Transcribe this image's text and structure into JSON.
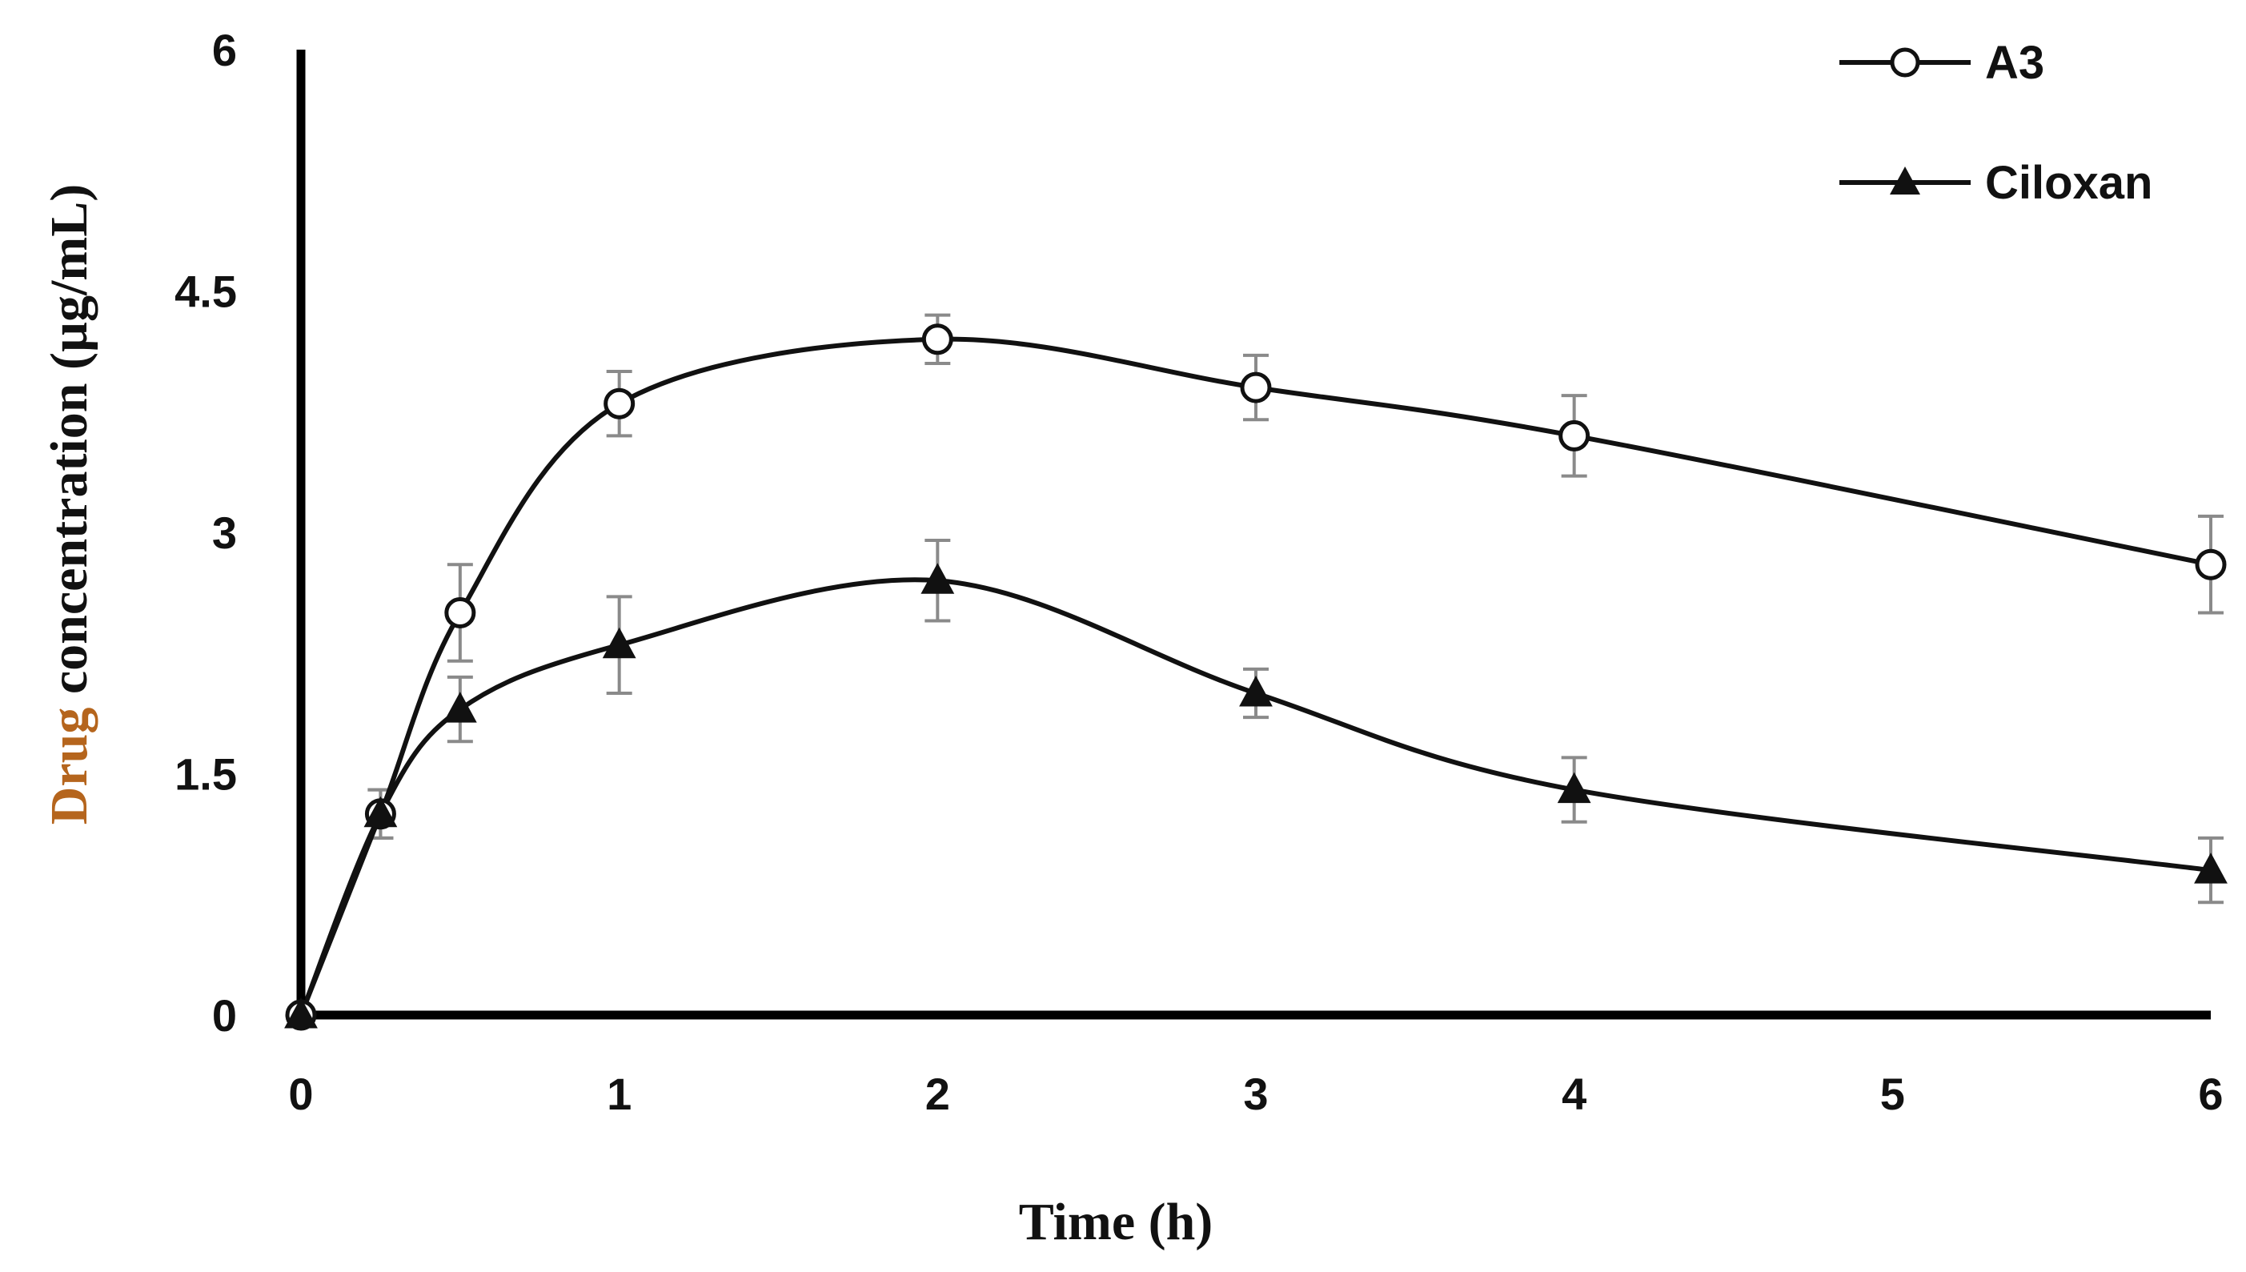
{
  "chart_data": {
    "type": "line",
    "xlabel": "Time (h)",
    "ylabel": "Drug concentration (µg/mL)",
    "xlim": [
      0,
      6
    ],
    "ylim": [
      0,
      6
    ],
    "x_ticks": [
      "0",
      "1",
      "2",
      "3",
      "4",
      "5",
      "6"
    ],
    "y_ticks": [
      "0",
      "1.5",
      "3",
      "4.5",
      "6"
    ],
    "grid": false,
    "legend_position": "top-right",
    "smoothed": true,
    "error_bars": true,
    "series": [
      {
        "name": "A3",
        "marker": "open-circle",
        "x": [
          0,
          0.25,
          0.5,
          1,
          2,
          3,
          4,
          6
        ],
        "y": [
          0,
          1.25,
          2.5,
          3.8,
          4.2,
          3.9,
          3.6,
          2.8
        ],
        "error": [
          0,
          0.15,
          0.3,
          0.2,
          0.15,
          0.2,
          0.25,
          0.3
        ]
      },
      {
        "name": "Ciloxan",
        "marker": "filled-triangle",
        "x": [
          0,
          0.25,
          0.5,
          1,
          2,
          3,
          4,
          6
        ],
        "y": [
          0,
          1.25,
          1.9,
          2.3,
          2.7,
          2.0,
          1.4,
          0.9
        ],
        "error": [
          0,
          0.15,
          0.2,
          0.3,
          0.25,
          0.15,
          0.2,
          0.2
        ]
      }
    ],
    "colors": {
      "line": "#111111",
      "errorbar": "#8a8a8a",
      "ylabel_main": "#111111",
      "ylabel_accent": "#b5651d"
    }
  }
}
